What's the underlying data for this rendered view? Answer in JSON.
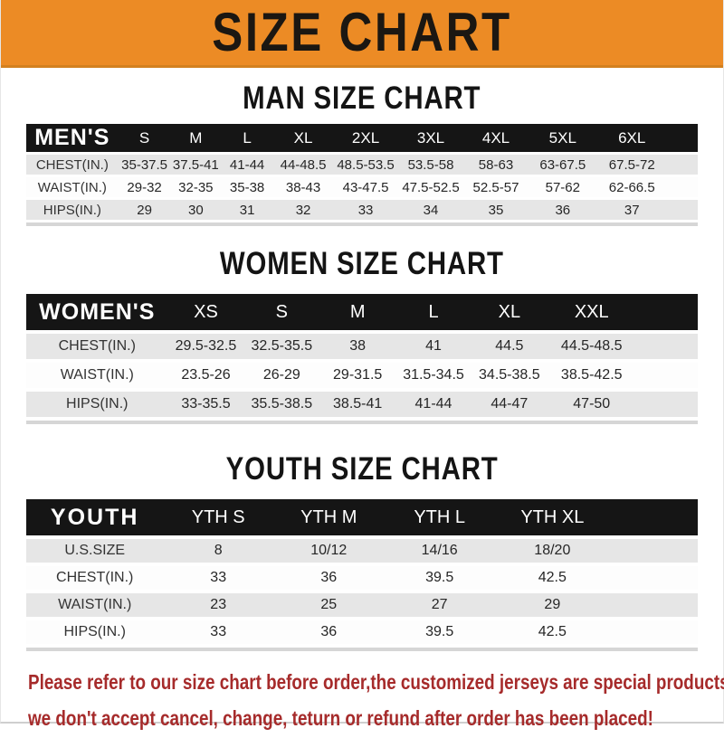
{
  "banner": {
    "title": "SIZE CHART"
  },
  "colors": {
    "banner_bg": "#EC8B25",
    "table_header_bg": "#151515",
    "table_header_text": "#FFFFFF",
    "row_stripe": "#E6E6E6",
    "notice_text": "#A62B2B"
  },
  "sections": [
    {
      "id": "men",
      "heading": "MAN SIZE CHART",
      "group_label": "MEN'S",
      "columns": [
        "S",
        "M",
        "L",
        "XL",
        "2XL",
        "3XL",
        "4XL",
        "5XL",
        "6XL"
      ],
      "rows": [
        {
          "label": "CHEST(IN.)",
          "values": [
            "35-37.5",
            "37.5-41",
            "41-44",
            "44-48.5",
            "48.5-53.5",
            "53.5-58",
            "58-63",
            "63-67.5",
            "67.5-72"
          ]
        },
        {
          "label": "WAIST(IN.)",
          "values": [
            "29-32",
            "32-35",
            "35-38",
            "38-43",
            "43-47.5",
            "47.5-52.5",
            "52.5-57",
            "57-62",
            "62-66.5"
          ]
        },
        {
          "label": "HIPS(IN.)",
          "values": [
            "29",
            "30",
            "31",
            "32",
            "33",
            "34",
            "35",
            "36",
            "37"
          ]
        }
      ]
    },
    {
      "id": "women",
      "heading": "WOMEN SIZE CHART",
      "group_label": "WOMEN'S",
      "columns": [
        "XS",
        "S",
        "M",
        "L",
        "XL",
        "XXL"
      ],
      "rows": [
        {
          "label": "CHEST(IN.)",
          "values": [
            "29.5-32.5",
            "32.5-35.5",
            "38",
            "41",
            "44.5",
            "44.5-48.5"
          ]
        },
        {
          "label": "WAIST(IN.)",
          "values": [
            "23.5-26",
            "26-29",
            "29-31.5",
            "31.5-34.5",
            "34.5-38.5",
            "38.5-42.5"
          ]
        },
        {
          "label": "HIPS(IN.)",
          "values": [
            "33-35.5",
            "35.5-38.5",
            "38.5-41",
            "41-44",
            "44-47",
            "47-50"
          ]
        }
      ]
    },
    {
      "id": "youth",
      "heading": "YOUTH SIZE CHART",
      "group_label": "YOUTH",
      "columns": [
        "YTH S",
        "YTH M",
        "YTH L",
        "YTH XL"
      ],
      "rows": [
        {
          "label": "U.S.SIZE",
          "values": [
            "8",
            "10/12",
            "14/16",
            "18/20"
          ]
        },
        {
          "label": "CHEST(IN.)",
          "values": [
            "33",
            "36",
            "39.5",
            "42.5"
          ]
        },
        {
          "label": "WAIST(IN.)",
          "values": [
            "23",
            "25",
            "27",
            "29"
          ]
        },
        {
          "label": "HIPS(IN.)",
          "values": [
            "33",
            "36",
            "39.5",
            "42.5"
          ]
        }
      ]
    }
  ],
  "footer": {
    "lines": [
      "Please refer to our size chart before order,the customized jerseys are special products,",
      "we don't accept cancel, change, teturn or refund after order has been placed!"
    ]
  }
}
